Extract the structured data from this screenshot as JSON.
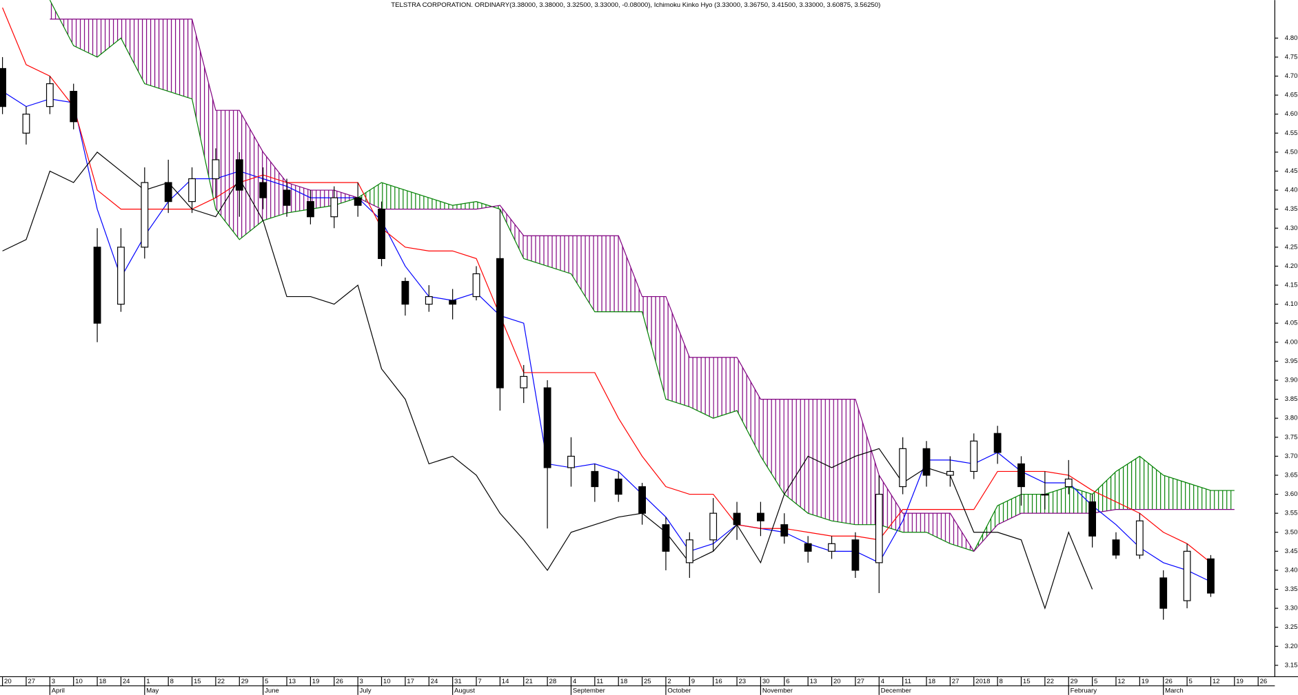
{
  "chart_data": {
    "type": "candlestick",
    "title": "TELSTRA CORPORATION. ORDINARY(3.38000, 3.38000, 3.32500, 3.33000, -0.08000), Ichimoku Kinko Hyo (3.33000, 3.36750, 3.41500, 3.33000, 3.60875, 3.56250)",
    "categories": [
      {
        "day": "20",
        "month": null
      },
      {
        "day": "27",
        "month": null
      },
      {
        "day": "3",
        "month": "April"
      },
      {
        "day": "10",
        "month": null
      },
      {
        "day": "18",
        "month": null
      },
      {
        "day": "24",
        "month": null
      },
      {
        "day": "1",
        "month": "May"
      },
      {
        "day": "8",
        "month": null
      },
      {
        "day": "15",
        "month": null
      },
      {
        "day": "22",
        "month": null
      },
      {
        "day": "29",
        "month": null
      },
      {
        "day": "5",
        "month": "June"
      },
      {
        "day": "13",
        "month": null
      },
      {
        "day": "19",
        "month": null
      },
      {
        "day": "26",
        "month": null
      },
      {
        "day": "3",
        "month": "July"
      },
      {
        "day": "10",
        "month": null
      },
      {
        "day": "17",
        "month": null
      },
      {
        "day": "24",
        "month": null
      },
      {
        "day": "31",
        "month": "August"
      },
      {
        "day": "7",
        "month": null
      },
      {
        "day": "14",
        "month": null
      },
      {
        "day": "21",
        "month": null
      },
      {
        "day": "28",
        "month": null
      },
      {
        "day": "4",
        "month": "September"
      },
      {
        "day": "11",
        "month": null
      },
      {
        "day": "18",
        "month": null
      },
      {
        "day": "25",
        "month": null
      },
      {
        "day": "2",
        "month": "October"
      },
      {
        "day": "9",
        "month": null
      },
      {
        "day": "16",
        "month": null
      },
      {
        "day": "23",
        "month": null
      },
      {
        "day": "30",
        "month": "November"
      },
      {
        "day": "6",
        "month": null
      },
      {
        "day": "13",
        "month": null
      },
      {
        "day": "20",
        "month": null
      },
      {
        "day": "27",
        "month": null
      },
      {
        "day": "4",
        "month": "December"
      },
      {
        "day": "11",
        "month": null
      },
      {
        "day": "18",
        "month": null
      },
      {
        "day": "27",
        "month": null
      },
      {
        "day": "2018",
        "month": null
      },
      {
        "day": "8",
        "month": null
      },
      {
        "day": "15",
        "month": null
      },
      {
        "day": "22",
        "month": null
      },
      {
        "day": "29",
        "month": "February"
      },
      {
        "day": "5",
        "month": null
      },
      {
        "day": "12",
        "month": null
      },
      {
        "day": "19",
        "month": null
      },
      {
        "day": "26",
        "month": "March"
      },
      {
        "day": "5",
        "month": null
      },
      {
        "day": "12",
        "month": null
      },
      {
        "day": "19",
        "month": null
      },
      {
        "day": "26",
        "month": null
      }
    ],
    "candles": {
      "up_color": "#ffffff",
      "down_color": "#000000",
      "open": [
        4.72,
        4.55,
        4.62,
        4.66,
        4.25,
        4.1,
        4.25,
        4.42,
        4.37,
        4.43,
        4.48,
        4.42,
        4.4,
        4.37,
        4.33,
        4.38,
        4.35,
        4.16,
        4.1,
        4.11,
        4.12,
        4.22,
        3.88,
        3.88,
        3.67,
        3.66,
        3.64,
        3.62,
        3.52,
        3.42,
        3.48,
        3.55,
        3.55,
        3.52,
        3.47,
        3.45,
        3.48,
        3.42,
        3.62,
        3.72,
        3.65,
        3.66,
        3.76,
        3.68,
        3.6,
        3.62,
        3.58,
        3.48,
        3.44,
        3.38,
        3.32,
        3.43,
        null,
        null
      ],
      "high": [
        4.75,
        4.62,
        4.7,
        4.68,
        4.3,
        4.3,
        4.46,
        4.48,
        4.46,
        4.51,
        4.5,
        4.46,
        4.43,
        4.4,
        4.41,
        4.42,
        4.37,
        4.17,
        4.15,
        4.14,
        4.2,
        4.35,
        3.94,
        3.9,
        3.75,
        3.68,
        3.66,
        3.63,
        3.54,
        3.5,
        3.59,
        3.58,
        3.58,
        3.55,
        3.49,
        3.49,
        3.5,
        3.65,
        3.75,
        3.74,
        3.7,
        3.76,
        3.78,
        3.7,
        3.66,
        3.69,
        3.6,
        3.5,
        3.55,
        3.4,
        3.47,
        3.44,
        null,
        null
      ],
      "low": [
        4.6,
        4.52,
        4.6,
        4.56,
        4.0,
        4.08,
        4.22,
        4.34,
        4.34,
        4.38,
        4.33,
        4.35,
        4.33,
        4.31,
        4.3,
        4.33,
        4.2,
        4.07,
        4.08,
        4.06,
        4.11,
        3.82,
        3.84,
        3.51,
        3.62,
        3.58,
        3.58,
        3.52,
        3.4,
        3.38,
        3.45,
        3.48,
        3.49,
        3.47,
        3.42,
        3.43,
        3.38,
        3.34,
        3.6,
        3.62,
        3.62,
        3.64,
        3.68,
        3.57,
        3.56,
        3.6,
        3.46,
        3.43,
        3.43,
        3.27,
        3.3,
        3.33,
        null,
        null
      ],
      "close": [
        4.62,
        4.6,
        4.68,
        4.58,
        4.05,
        4.25,
        4.42,
        4.37,
        4.43,
        4.48,
        4.4,
        4.38,
        4.36,
        4.33,
        4.38,
        4.36,
        4.22,
        4.1,
        4.12,
        4.1,
        4.18,
        3.88,
        3.91,
        3.67,
        3.7,
        3.62,
        3.6,
        3.55,
        3.45,
        3.48,
        3.55,
        3.52,
        3.53,
        3.49,
        3.45,
        3.47,
        3.4,
        3.6,
        3.72,
        3.65,
        3.66,
        3.74,
        3.71,
        3.62,
        3.6,
        3.64,
        3.49,
        3.44,
        3.53,
        3.3,
        3.45,
        3.34,
        null,
        null
      ]
    },
    "series": [
      {
        "color": "#0000ff",
        "values": [
          4.66,
          4.62,
          4.64,
          4.63,
          4.35,
          4.17,
          4.28,
          4.37,
          4.43,
          4.43,
          4.45,
          4.43,
          4.41,
          4.38,
          4.38,
          4.38,
          4.32,
          4.2,
          4.12,
          4.11,
          4.13,
          4.07,
          4.05,
          3.68,
          3.67,
          3.68,
          3.66,
          3.6,
          3.54,
          3.45,
          3.47,
          3.52,
          3.51,
          3.5,
          3.47,
          3.45,
          3.45,
          3.42,
          3.53,
          3.69,
          3.69,
          3.68,
          3.71,
          3.66,
          3.63,
          3.63,
          3.57,
          3.52,
          3.46,
          3.42,
          3.4,
          3.37,
          null,
          null
        ]
      },
      {
        "color": "#ff0000",
        "values": [
          4.88,
          4.73,
          4.7,
          4.62,
          4.4,
          4.35,
          4.35,
          4.35,
          4.35,
          4.38,
          4.42,
          4.44,
          4.42,
          4.42,
          4.42,
          4.42,
          4.3,
          4.25,
          4.24,
          4.24,
          4.22,
          4.07,
          3.92,
          3.92,
          3.92,
          3.92,
          3.8,
          3.7,
          3.62,
          3.6,
          3.6,
          3.52,
          3.51,
          3.51,
          3.5,
          3.49,
          3.49,
          3.48,
          3.56,
          3.56,
          3.56,
          3.56,
          3.66,
          3.66,
          3.66,
          3.65,
          3.61,
          3.58,
          3.55,
          3.5,
          3.47,
          3.42,
          null,
          null
        ]
      },
      {
        "color": "#000000",
        "values": [
          4.24,
          4.27,
          4.45,
          4.42,
          4.5,
          4.45,
          4.4,
          4.42,
          4.35,
          4.33,
          4.43,
          4.32,
          4.12,
          4.12,
          4.1,
          4.15,
          3.93,
          3.85,
          3.68,
          3.7,
          3.65,
          3.55,
          3.48,
          3.4,
          3.5,
          3.52,
          3.54,
          3.55,
          3.5,
          3.42,
          3.45,
          3.52,
          3.42,
          3.6,
          3.7,
          3.67,
          3.7,
          3.72,
          3.63,
          3.67,
          3.65,
          3.5,
          3.5,
          3.48,
          3.3,
          3.5,
          3.35,
          null,
          null,
          null,
          null,
          null,
          null,
          null
        ]
      }
    ],
    "cloud": {
      "a_color": "#008000",
      "b_color": "#800080",
      "a": [
        null,
        null,
        4.9,
        4.78,
        4.75,
        4.8,
        4.68,
        4.66,
        4.64,
        4.35,
        4.27,
        4.32,
        4.34,
        4.35,
        4.36,
        4.38,
        4.42,
        4.4,
        4.38,
        4.36,
        4.37,
        4.35,
        4.22,
        4.2,
        4.18,
        4.08,
        4.08,
        4.08,
        3.85,
        3.83,
        3.8,
        3.82,
        3.7,
        3.6,
        3.55,
        3.53,
        3.52,
        3.52,
        3.5,
        3.5,
        3.47,
        3.45,
        3.57,
        3.6,
        3.6,
        3.62,
        3.6,
        3.66,
        3.7,
        3.65,
        3.63,
        3.61,
        3.61,
        null
      ],
      "b": [
        null,
        null,
        4.85,
        4.85,
        4.85,
        4.85,
        4.85,
        4.85,
        4.85,
        4.61,
        4.61,
        4.5,
        4.42,
        4.4,
        4.4,
        4.38,
        4.35,
        4.35,
        4.35,
        4.35,
        4.35,
        4.36,
        4.28,
        4.28,
        4.28,
        4.28,
        4.28,
        4.12,
        4.12,
        3.96,
        3.96,
        3.96,
        3.85,
        3.85,
        3.85,
        3.85,
        3.85,
        3.65,
        3.55,
        3.55,
        3.55,
        3.45,
        3.52,
        3.55,
        3.55,
        3.55,
        3.55,
        3.56,
        3.56,
        3.56,
        3.56,
        3.56,
        3.56,
        null
      ]
    },
    "ylim": [
      3.12,
      4.9
    ],
    "yticks": [
      {
        "value": 3.15,
        "label": "3.15"
      },
      {
        "value": 3.2,
        "label": "3.20"
      },
      {
        "value": 3.25,
        "label": "3.25"
      },
      {
        "value": 3.3,
        "label": "3.30"
      },
      {
        "value": 3.35,
        "label": "3.35"
      },
      {
        "value": 3.4,
        "label": "3.40"
      },
      {
        "value": 3.45,
        "label": "3.45"
      },
      {
        "value": 3.5,
        "label": "3.50"
      },
      {
        "value": 3.55,
        "label": "3.55"
      },
      {
        "value": 3.6,
        "label": "3.60"
      },
      {
        "value": 3.65,
        "label": "3.65"
      },
      {
        "value": 3.7,
        "label": "3.70"
      },
      {
        "value": 3.75,
        "label": "3.75"
      },
      {
        "value": 3.8,
        "label": "3.80"
      },
      {
        "value": 3.85,
        "label": "3.85"
      },
      {
        "value": 3.9,
        "label": "3.90"
      },
      {
        "value": 3.95,
        "label": "3.95"
      },
      {
        "value": 4.0,
        "label": "4.00"
      },
      {
        "value": 4.05,
        "label": "4.05"
      },
      {
        "value": 4.1,
        "label": "4.10"
      },
      {
        "value": 4.15,
        "label": "4.15"
      },
      {
        "value": 4.2,
        "label": "4.20"
      },
      {
        "value": 4.25,
        "label": "4.25"
      },
      {
        "value": 4.3,
        "label": "4.30"
      },
      {
        "value": 4.35,
        "label": "4.35"
      },
      {
        "value": 4.4,
        "label": "4.40"
      },
      {
        "value": 4.45,
        "label": "4.45"
      },
      {
        "value": 4.5,
        "label": "4.50"
      },
      {
        "value": 4.55,
        "label": "4.55"
      },
      {
        "value": 4.6,
        "label": "4.60"
      },
      {
        "value": 4.65,
        "label": "4.65"
      },
      {
        "value": 4.7,
        "label": "4.70"
      },
      {
        "value": 4.75,
        "label": "4.75"
      },
      {
        "value": 4.8,
        "label": "4.80"
      }
    ],
    "grid": false
  }
}
